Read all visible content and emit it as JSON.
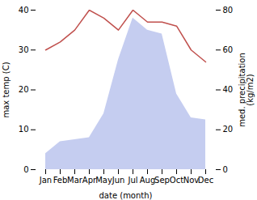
{
  "chart_data": {
    "type": "line",
    "categories": [
      "Jan",
      "Feb",
      "Mar",
      "Apr",
      "May",
      "Jun",
      "Jul",
      "Aug",
      "Sep",
      "Oct",
      "Nov",
      "Dec"
    ],
    "xlabel": "date (month)",
    "ylabel": "max temp (C)",
    "y2label": "med. precipitation\n(kg/m2)",
    "ylim": [
      0,
      40
    ],
    "yticks": [
      0,
      10,
      20,
      30,
      40
    ],
    "y2lim": [
      0,
      80
    ],
    "y2ticks": [
      0,
      20,
      40,
      60,
      80
    ],
    "series": [
      {
        "type": "area",
        "axis": "y2",
        "color": "#c5cdf0",
        "values": [
          8,
          14,
          15,
          16,
          28,
          55,
          76,
          70,
          68,
          38,
          26,
          25
        ]
      },
      {
        "type": "line",
        "color": "#c0504d",
        "values": [
          30,
          32,
          35,
          40,
          38,
          35,
          40,
          37,
          37,
          36,
          30,
          27
        ]
      }
    ]
  }
}
